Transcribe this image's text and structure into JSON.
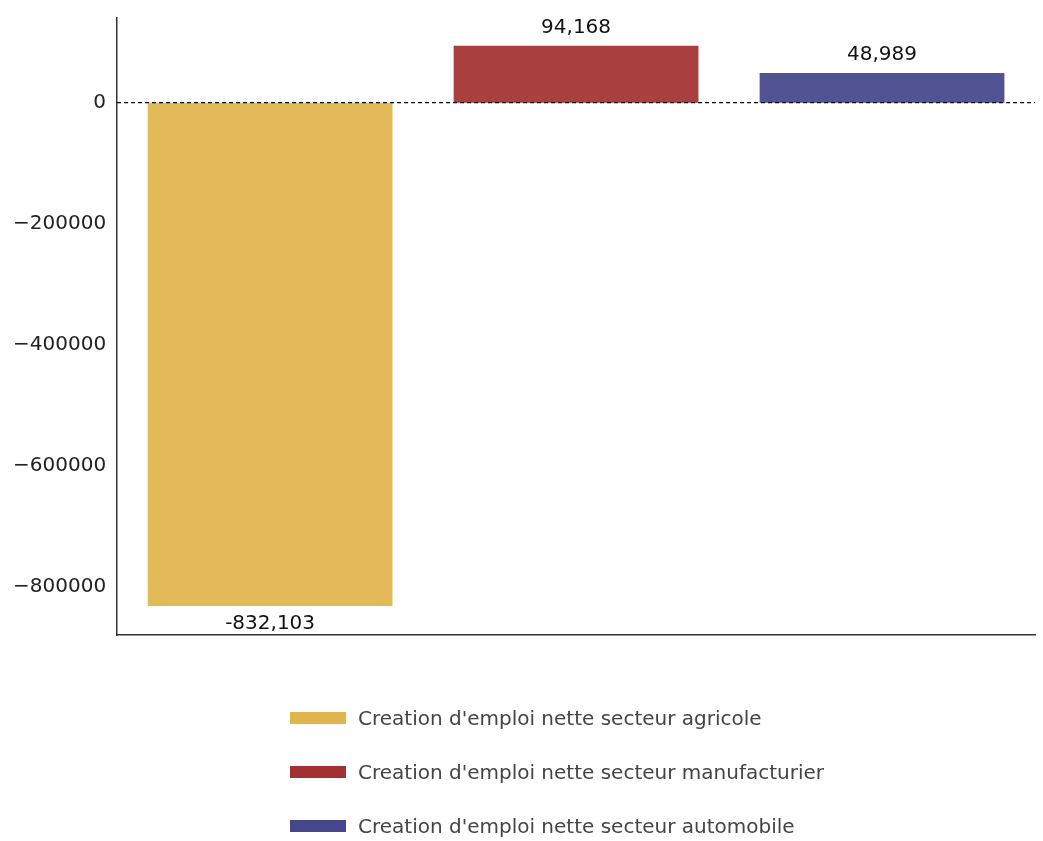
{
  "chart_data": {
    "type": "bar",
    "categories": [
      null,
      null,
      null
    ],
    "series": [
      {
        "name": "Creation d'emploi nette secteur agricole",
        "color": "#e0b54c",
        "values": [
          -832103,
          null,
          null
        ]
      },
      {
        "name": "Creation d'emploi nette secteur manufacturier",
        "color": "#a23232",
        "values": [
          null,
          94168,
          null
        ]
      },
      {
        "name": "Creation d'emploi nette secteur automobile",
        "color": "#46478a",
        "values": [
          null,
          null,
          48989
        ]
      }
    ],
    "value_labels": [
      [
        "-832,103",
        null,
        null
      ],
      [
        null,
        "94,168",
        null
      ],
      [
        null,
        null,
        "48,989"
      ]
    ],
    "ylim": [
      -880000,
      140000
    ],
    "yticks": [
      {
        "value": -800000,
        "label": "−800000"
      },
      {
        "value": -600000,
        "label": "−600000"
      },
      {
        "value": -400000,
        "label": "−400000"
      },
      {
        "value": -200000,
        "label": "−200000"
      },
      0
    ],
    "ref_lines": [
      {
        "axis": "y",
        "value": 0,
        "line_style": "dashed",
        "color": "#000000"
      }
    ],
    "tick_labels": "y",
    "grid": false,
    "legend": "bottom"
  }
}
